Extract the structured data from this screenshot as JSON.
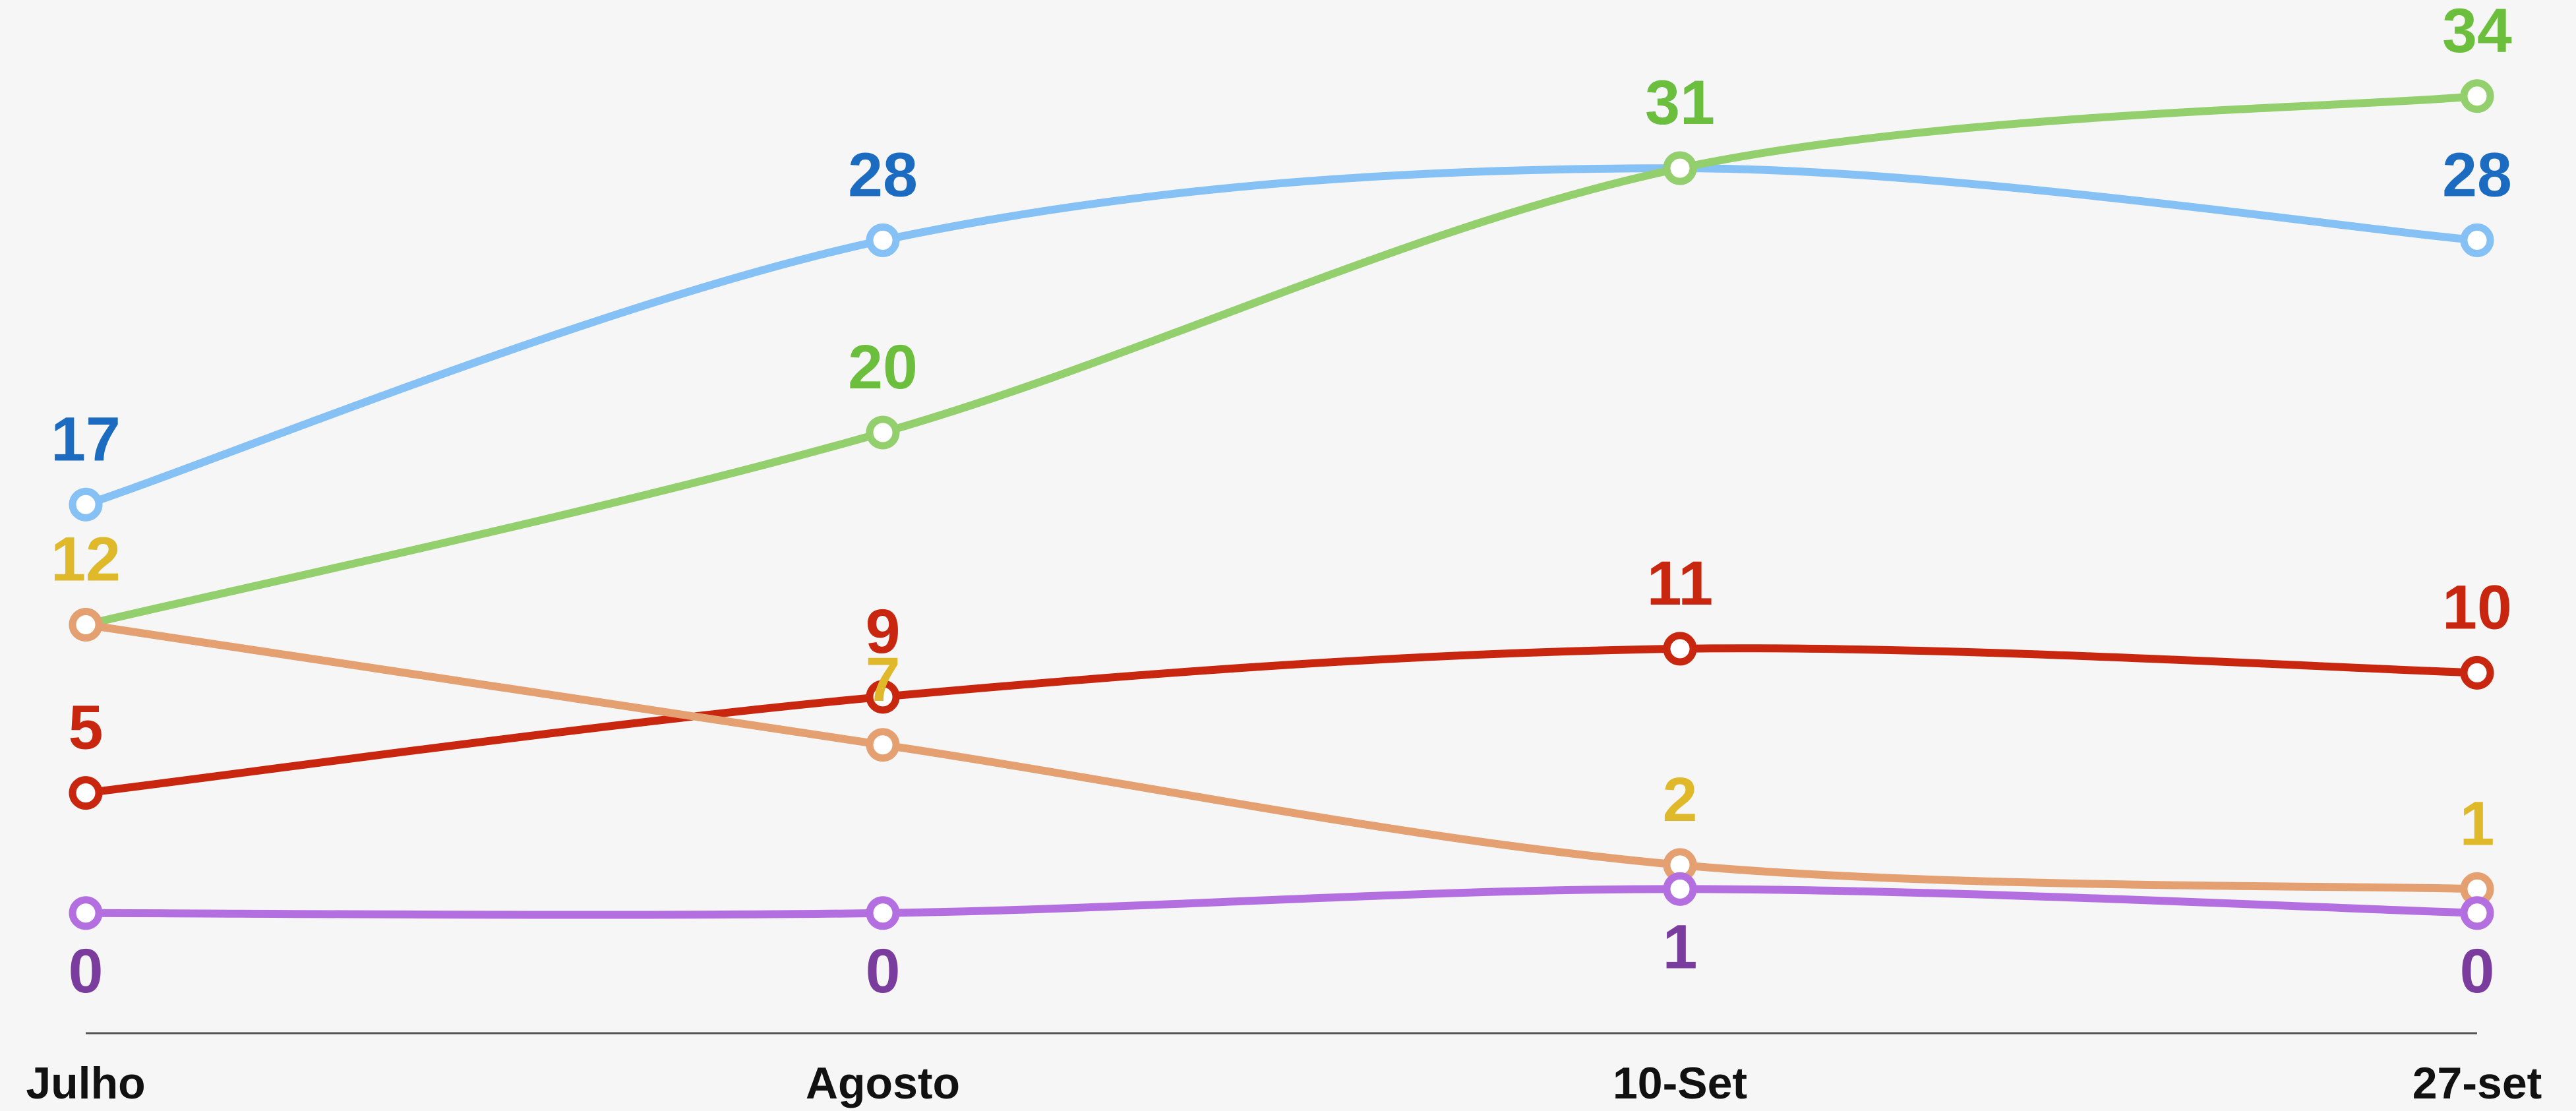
{
  "chart_data": {
    "type": "line",
    "categories": [
      "Julho",
      "Agosto",
      "10-Set",
      "27-set"
    ],
    "series": [
      {
        "color": "#85c1f5",
        "label_color": "#1b6cc0",
        "label_position": "above",
        "values": [
          17,
          28,
          31,
          28
        ]
      },
      {
        "color": "#94cf6e",
        "label_color": "#6cbf3c",
        "label_position": "above",
        "values": [
          12,
          20,
          31,
          34
        ]
      },
      {
        "color": "#c8260e",
        "label_color": "#c8260e",
        "label_position": "above",
        "values": [
          5,
          9,
          11,
          10
        ]
      },
      {
        "color": "#e4a070",
        "label_color": "#e0b92a",
        "label_position": "above",
        "values": [
          12,
          7,
          2,
          1
        ]
      },
      {
        "color": "#b36ee0",
        "label_color": "#7a3d9e",
        "label_position": "below",
        "values": [
          0,
          0,
          1,
          0
        ]
      }
    ],
    "ylim": [
      -5,
      38
    ]
  }
}
